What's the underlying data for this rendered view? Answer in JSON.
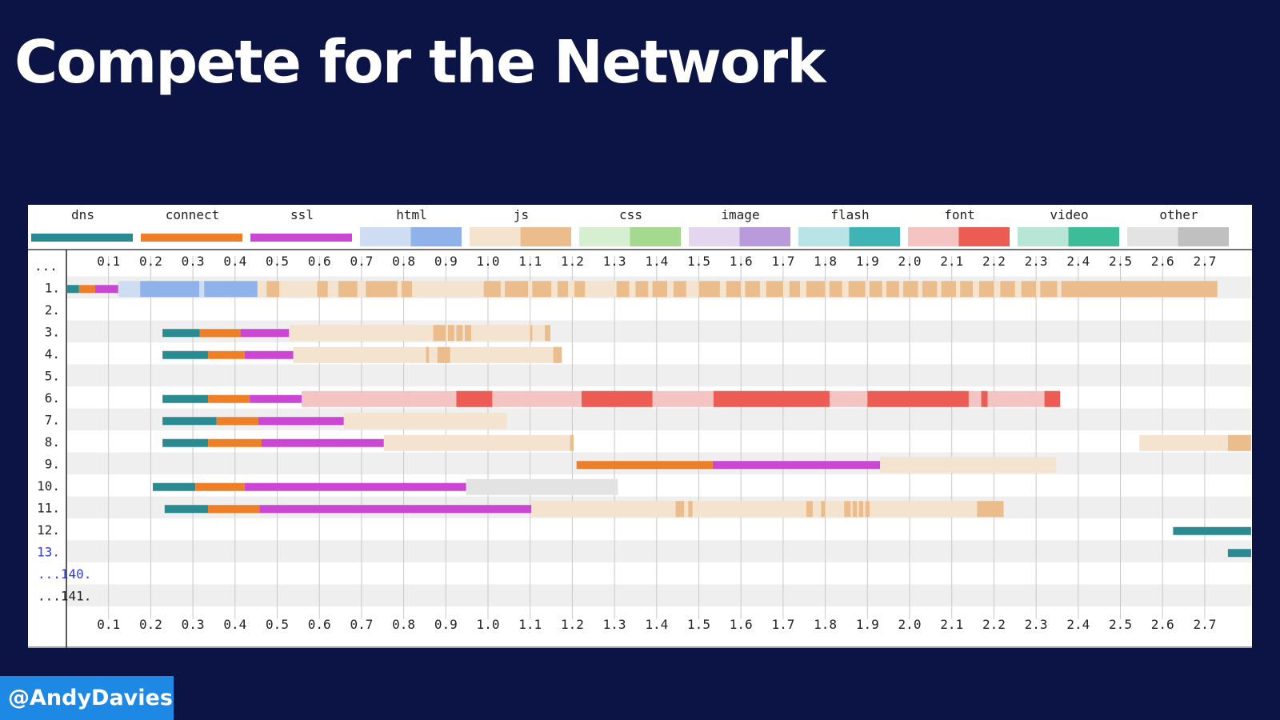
{
  "slide": {
    "title": "Compete for the Network",
    "handle": "@AndyDavies"
  },
  "colors": {
    "background": "#0c1445",
    "handle_bg": "#1e88e5",
    "dns": "#2a8a92",
    "connect": "#ef7f26",
    "ssl": "#cb46d3",
    "html_light": "#cfddf2",
    "html_dark": "#8fb2ea",
    "js_light": "#f4e3cf",
    "js_dark": "#ebbd8d",
    "css_light": "#d6efd0",
    "css_dark": "#a4d98f",
    "image_light": "#e5d6ef",
    "image_dark": "#b99adb",
    "flash_light": "#b9e4e6",
    "flash_dark": "#40b3b5",
    "font_light": "#f4c4c2",
    "font_dark": "#ec5c54",
    "video_light": "#b7e6d6",
    "video_dark": "#3cbd97",
    "other_light": "#e3e3e3",
    "other_dark": "#c0c0c0"
  },
  "chart_data": {
    "type": "waterfall",
    "legend": [
      {
        "name": "dns",
        "type": "solid",
        "color": "dns"
      },
      {
        "name": "connect",
        "type": "solid",
        "color": "connect"
      },
      {
        "name": "ssl",
        "type": "solid",
        "color": "ssl"
      },
      {
        "name": "html",
        "type": "split",
        "light": "html_light",
        "dark": "html_dark"
      },
      {
        "name": "js",
        "type": "split",
        "light": "js_light",
        "dark": "js_dark"
      },
      {
        "name": "css",
        "type": "split",
        "light": "css_light",
        "dark": "css_dark"
      },
      {
        "name": "image",
        "type": "split",
        "light": "image_light",
        "dark": "image_dark"
      },
      {
        "name": "flash",
        "type": "split",
        "light": "flash_light",
        "dark": "flash_dark"
      },
      {
        "name": "font",
        "type": "split",
        "light": "font_light",
        "dark": "font_dark"
      },
      {
        "name": "video",
        "type": "split",
        "light": "video_light",
        "dark": "video_dark"
      },
      {
        "name": "other",
        "type": "split",
        "light": "other_light",
        "dark": "other_dark"
      }
    ],
    "x_ticks": [
      "0.1",
      "0.2",
      "0.3",
      "0.4",
      "0.5",
      "0.6",
      "0.7",
      "0.8",
      "0.9",
      "1.0",
      "1.1",
      "1.2",
      "1.3",
      "1.4",
      "1.5",
      "1.6",
      "1.7",
      "1.8",
      "1.9",
      "2.0",
      "2.1",
      "2.2",
      "2.3",
      "2.4",
      "2.5",
      "2.6",
      "2.7"
    ],
    "xlim": [
      0.0,
      2.81
    ],
    "x_unit": "seconds",
    "grid": true,
    "rows": [
      {
        "label": "...",
        "link": false,
        "segments": []
      },
      {
        "label": "1.",
        "link": false,
        "segments": [
          {
            "kind": "dns",
            "start": 0.0,
            "end": 0.03
          },
          {
            "kind": "connect",
            "start": 0.03,
            "end": 0.068
          },
          {
            "kind": "ssl",
            "start": 0.068,
            "end": 0.123
          },
          {
            "kind": "html_light",
            "start": 0.123,
            "end": 0.453
          },
          {
            "kind": "js_light",
            "start": 0.453,
            "end": 2.73
          }
        ],
        "chunks": [
          {
            "kind": "html_dark",
            "start": 0.175,
            "end": 0.315
          },
          {
            "kind": "html_dark",
            "start": 0.327,
            "end": 0.453
          },
          {
            "kind": "js_dark",
            "start": 0.475,
            "end": 0.505
          },
          {
            "kind": "js_dark",
            "start": 0.595,
            "end": 0.62
          },
          {
            "kind": "js_dark",
            "start": 0.645,
            "end": 0.69
          },
          {
            "kind": "js_dark",
            "start": 0.71,
            "end": 0.785
          },
          {
            "kind": "js_dark",
            "start": 0.795,
            "end": 0.82
          },
          {
            "kind": "js_dark",
            "start": 0.99,
            "end": 1.03
          },
          {
            "kind": "js_dark",
            "start": 1.04,
            "end": 1.095
          },
          {
            "kind": "js_dark",
            "start": 1.105,
            "end": 1.15
          },
          {
            "kind": "js_dark",
            "start": 1.165,
            "end": 1.19
          },
          {
            "kind": "js_dark",
            "start": 1.205,
            "end": 1.23
          },
          {
            "kind": "js_dark",
            "start": 1.305,
            "end": 1.335
          },
          {
            "kind": "js_dark",
            "start": 1.35,
            "end": 1.38
          },
          {
            "kind": "js_dark",
            "start": 1.39,
            "end": 1.425
          },
          {
            "kind": "js_dark",
            "start": 1.44,
            "end": 1.47
          },
          {
            "kind": "js_dark",
            "start": 1.5,
            "end": 1.55
          },
          {
            "kind": "js_dark",
            "start": 1.565,
            "end": 1.6
          },
          {
            "kind": "js_dark",
            "start": 1.61,
            "end": 1.645
          },
          {
            "kind": "js_dark",
            "start": 1.66,
            "end": 1.7
          },
          {
            "kind": "js_dark",
            "start": 1.715,
            "end": 1.74
          },
          {
            "kind": "js_dark",
            "start": 1.755,
            "end": 1.8
          },
          {
            "kind": "js_dark",
            "start": 1.81,
            "end": 1.84
          },
          {
            "kind": "js_dark",
            "start": 1.855,
            "end": 1.895
          },
          {
            "kind": "js_dark",
            "start": 1.905,
            "end": 1.935
          },
          {
            "kind": "js_dark",
            "start": 1.945,
            "end": 1.975
          },
          {
            "kind": "js_dark",
            "start": 1.985,
            "end": 2.02
          },
          {
            "kind": "js_dark",
            "start": 2.03,
            "end": 2.065
          },
          {
            "kind": "js_dark",
            "start": 2.075,
            "end": 2.11
          },
          {
            "kind": "js_dark",
            "start": 2.12,
            "end": 2.15
          },
          {
            "kind": "js_dark",
            "start": 2.165,
            "end": 2.2
          },
          {
            "kind": "js_dark",
            "start": 2.215,
            "end": 2.25
          },
          {
            "kind": "js_dark",
            "start": 2.265,
            "end": 2.3
          },
          {
            "kind": "js_dark",
            "start": 2.31,
            "end": 2.35
          },
          {
            "kind": "js_dark",
            "start": 2.36,
            "end": 2.73
          }
        ]
      },
      {
        "label": "2.",
        "link": false,
        "segments": []
      },
      {
        "label": "3.",
        "link": false,
        "segments": [
          {
            "kind": "dns",
            "start": 0.228,
            "end": 0.316
          },
          {
            "kind": "connect",
            "start": 0.316,
            "end": 0.413
          },
          {
            "kind": "ssl",
            "start": 0.413,
            "end": 0.528
          },
          {
            "kind": "js_light",
            "start": 0.528,
            "end": 1.148
          }
        ],
        "chunks": [
          {
            "kind": "js_dark",
            "start": 0.87,
            "end": 0.9
          },
          {
            "kind": "js_dark",
            "start": 0.905,
            "end": 0.92
          },
          {
            "kind": "js_dark",
            "start": 0.925,
            "end": 0.94
          },
          {
            "kind": "js_dark",
            "start": 0.945,
            "end": 0.96
          },
          {
            "kind": "js_dark",
            "start": 1.1,
            "end": 1.105
          },
          {
            "kind": "js_dark",
            "start": 1.135,
            "end": 1.148
          }
        ]
      },
      {
        "label": "4.",
        "link": false,
        "segments": [
          {
            "kind": "dns",
            "start": 0.228,
            "end": 0.336
          },
          {
            "kind": "connect",
            "start": 0.336,
            "end": 0.423
          },
          {
            "kind": "ssl",
            "start": 0.423,
            "end": 0.538
          },
          {
            "kind": "js_light",
            "start": 0.538,
            "end": 1.175
          }
        ],
        "chunks": [
          {
            "kind": "js_dark",
            "start": 0.853,
            "end": 0.86
          },
          {
            "kind": "js_dark",
            "start": 0.88,
            "end": 0.91
          },
          {
            "kind": "js_dark",
            "start": 1.155,
            "end": 1.175
          }
        ]
      },
      {
        "label": "5.",
        "link": false,
        "segments": []
      },
      {
        "label": "6.",
        "link": false,
        "segments": [
          {
            "kind": "dns",
            "start": 0.228,
            "end": 0.336
          },
          {
            "kind": "connect",
            "start": 0.336,
            "end": 0.435
          },
          {
            "kind": "ssl",
            "start": 0.435,
            "end": 0.558
          },
          {
            "kind": "font_light",
            "start": 0.558,
            "end": 2.357
          }
        ],
        "chunks": [
          {
            "kind": "font_dark",
            "start": 0.925,
            "end": 1.01
          },
          {
            "kind": "font_dark",
            "start": 1.222,
            "end": 1.39
          },
          {
            "kind": "font_dark",
            "start": 1.535,
            "end": 1.81
          },
          {
            "kind": "font_dark",
            "start": 1.9,
            "end": 2.14
          },
          {
            "kind": "font_dark",
            "start": 2.17,
            "end": 2.185
          },
          {
            "kind": "font_dark",
            "start": 2.32,
            "end": 2.357
          }
        ]
      },
      {
        "label": "7.",
        "link": false,
        "segments": [
          {
            "kind": "dns",
            "start": 0.228,
            "end": 0.356
          },
          {
            "kind": "connect",
            "start": 0.356,
            "end": 0.455
          },
          {
            "kind": "ssl",
            "start": 0.455,
            "end": 0.658
          },
          {
            "kind": "js_light",
            "start": 0.658,
            "end": 1.045
          }
        ]
      },
      {
        "label": "8.",
        "link": false,
        "segments": [
          {
            "kind": "dns",
            "start": 0.228,
            "end": 0.336
          },
          {
            "kind": "connect",
            "start": 0.336,
            "end": 0.463
          },
          {
            "kind": "ssl",
            "start": 0.463,
            "end": 0.753
          },
          {
            "kind": "js_light",
            "start": 0.753,
            "end": 1.203
          },
          {
            "kind": "js_light",
            "start": 2.545,
            "end": 2.81
          }
        ],
        "chunks": [
          {
            "kind": "js_dark",
            "start": 1.195,
            "end": 1.203
          },
          {
            "kind": "js_dark",
            "start": 2.755,
            "end": 2.81
          }
        ]
      },
      {
        "label": "9.",
        "link": false,
        "segments": [
          {
            "kind": "connect",
            "start": 1.21,
            "end": 1.533
          },
          {
            "kind": "ssl",
            "start": 1.533,
            "end": 1.93
          },
          {
            "kind": "js_light",
            "start": 1.93,
            "end": 2.348
          }
        ]
      },
      {
        "label": "10.",
        "link": false,
        "segments": [
          {
            "kind": "dns",
            "start": 0.205,
            "end": 0.306
          },
          {
            "kind": "connect",
            "start": 0.306,
            "end": 0.423
          },
          {
            "kind": "ssl",
            "start": 0.423,
            "end": 0.948
          },
          {
            "kind": "other_light",
            "start": 0.948,
            "end": 1.308
          }
        ]
      },
      {
        "label": "11.",
        "link": false,
        "segments": [
          {
            "kind": "dns",
            "start": 0.233,
            "end": 0.336
          },
          {
            "kind": "connect",
            "start": 0.336,
            "end": 0.458
          },
          {
            "kind": "ssl",
            "start": 0.458,
            "end": 1.103
          },
          {
            "kind": "js_light",
            "start": 1.103,
            "end": 2.223
          }
        ],
        "chunks": [
          {
            "kind": "js_dark",
            "start": 1.445,
            "end": 1.465
          },
          {
            "kind": "js_dark",
            "start": 1.475,
            "end": 1.485
          },
          {
            "kind": "js_dark",
            "start": 1.755,
            "end": 1.77
          },
          {
            "kind": "js_dark",
            "start": 1.79,
            "end": 1.8
          },
          {
            "kind": "js_dark",
            "start": 1.845,
            "end": 1.86
          },
          {
            "kind": "js_dark",
            "start": 1.865,
            "end": 1.875
          },
          {
            "kind": "js_dark",
            "start": 1.88,
            "end": 1.89
          },
          {
            "kind": "js_dark",
            "start": 1.895,
            "end": 1.905
          },
          {
            "kind": "js_dark",
            "start": 2.16,
            "end": 2.223
          }
        ]
      },
      {
        "label": "12.",
        "link": false,
        "segments": [
          {
            "kind": "dns",
            "start": 2.625,
            "end": 2.81
          }
        ]
      },
      {
        "label": "13.",
        "link": true,
        "segments": [
          {
            "kind": "dns",
            "start": 2.755,
            "end": 2.81
          }
        ]
      },
      {
        "label": "...140.",
        "link": true,
        "segments": []
      },
      {
        "label": "...141.",
        "link": false,
        "segments": []
      }
    ]
  }
}
